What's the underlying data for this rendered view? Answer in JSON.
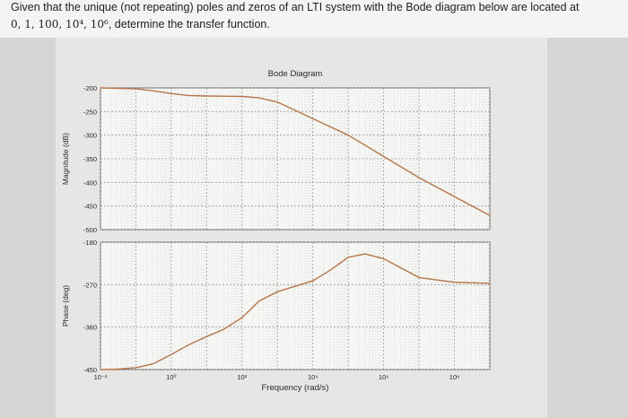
{
  "question": {
    "line1": "Given that the unique (not repeating) poles and zeros of an LTI system with the Bode diagram below are located at",
    "line2_math": "0, 1, 100, 10⁴, 10⁶",
    "line2_text": ", determine the transfer function."
  },
  "chart_data": [
    {
      "type": "line",
      "title": "Bode Diagram",
      "ylabel": "Magnitude (dB)",
      "xscale": "log",
      "xlim": [
        0.01,
        1000000000
      ],
      "ylim": [
        -500,
        -200
      ],
      "yticks": [
        -200,
        -250,
        -300,
        -350,
        -400,
        -450,
        -500
      ],
      "ytick_labels": [
        "-200",
        "-250",
        "-300",
        "-350",
        "-400",
        "-450",
        "-500"
      ],
      "grid": true,
      "series": [
        {
          "color": "#b5764a",
          "x": [
            0.01,
            0.1,
            0.3,
            1,
            3,
            10,
            100,
            300,
            1000,
            10000,
            100000,
            1000000,
            10000000,
            100000000,
            1000000000
          ],
          "y": [
            -200,
            -202,
            -206,
            -212,
            -216,
            -217,
            -218,
            -221,
            -230,
            -265,
            -300,
            -345,
            -390,
            -430,
            -470
          ]
        }
      ]
    },
    {
      "type": "line",
      "xlabel": "Frequency (rad/s)",
      "ylabel": "Phase (deg)",
      "xscale": "log",
      "xlim": [
        0.01,
        1000000000
      ],
      "ylim": [
        -450,
        -180
      ],
      "yticks": [
        -180,
        -270,
        -360,
        -450
      ],
      "ytick_labels": [
        "-180",
        "-270",
        "-360",
        "-450"
      ],
      "xtick_labels": [
        "10⁻²",
        "10⁰",
        "10²",
        "10⁴",
        "10⁶",
        "10⁸"
      ],
      "grid": true,
      "series": [
        {
          "color": "#b5764a",
          "x": [
            0.01,
            0.03,
            0.1,
            0.3,
            1,
            3,
            10,
            30,
            100,
            300,
            1000,
            10000,
            30000,
            100000,
            300000,
            1000000,
            10000000,
            100000000,
            1000000000
          ],
          "y": [
            -450,
            -449,
            -446,
            -438,
            -418,
            -398,
            -380,
            -365,
            -340,
            -305,
            -285,
            -262,
            -240,
            -212,
            -205,
            -215,
            -255,
            -265,
            -267
          ]
        }
      ]
    }
  ]
}
